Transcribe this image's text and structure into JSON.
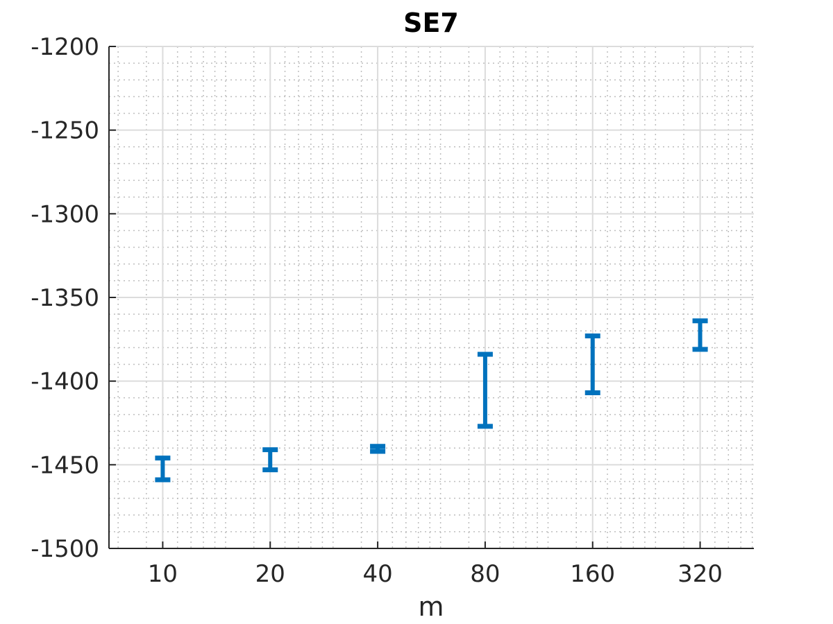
{
  "chart_data": {
    "type": "errorbar",
    "title": "SE7",
    "xlabel": "m",
    "ylabel": "",
    "x_scale": "log2",
    "categories": [
      "10",
      "20",
      "40",
      "80",
      "160",
      "320"
    ],
    "x": [
      10,
      20,
      40,
      80,
      160,
      320
    ],
    "series": [
      {
        "lower": [
          -1459,
          -1453,
          -1442,
          -1427,
          -1407,
          -1381
        ],
        "upper": [
          -1446,
          -1441,
          -1439,
          -1384,
          -1373,
          -1364
        ]
      }
    ],
    "y_ticks": [
      "-1200",
      "-1250",
      "-1300",
      "-1350",
      "-1400",
      "-1450",
      "-1500"
    ],
    "ylim": [
      -1500,
      -1200
    ],
    "grid": true,
    "minor_grid": true,
    "color": "#0072BD"
  }
}
